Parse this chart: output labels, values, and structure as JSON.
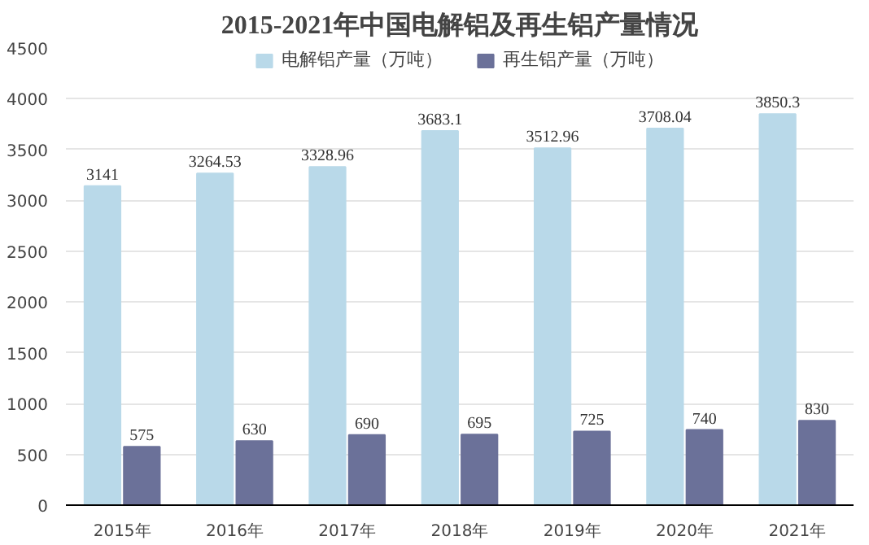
{
  "chart_data": {
    "type": "bar",
    "title": "2015-2021年中国电解铝及再生铝产量情况",
    "categories": [
      "2015年",
      "2016年",
      "2017年",
      "2018年",
      "2019年",
      "2020年",
      "2021年"
    ],
    "series": [
      {
        "name": "电解铝产量（万吨）",
        "color": "#b9d9e9",
        "values": [
          3141,
          3264.53,
          3328.96,
          3683.1,
          3512.96,
          3708.04,
          3850.3
        ]
      },
      {
        "name": "再生铝产量（万吨）",
        "color": "#6b7199",
        "values": [
          575,
          630,
          690,
          695,
          725,
          740,
          830
        ]
      }
    ],
    "ylim": [
      0,
      4500
    ],
    "yticks": [
      0,
      500,
      1000,
      1500,
      2000,
      2500,
      3000,
      3500,
      4000,
      4500
    ],
    "grid": "y",
    "legend": "top",
    "data_labels": true
  }
}
